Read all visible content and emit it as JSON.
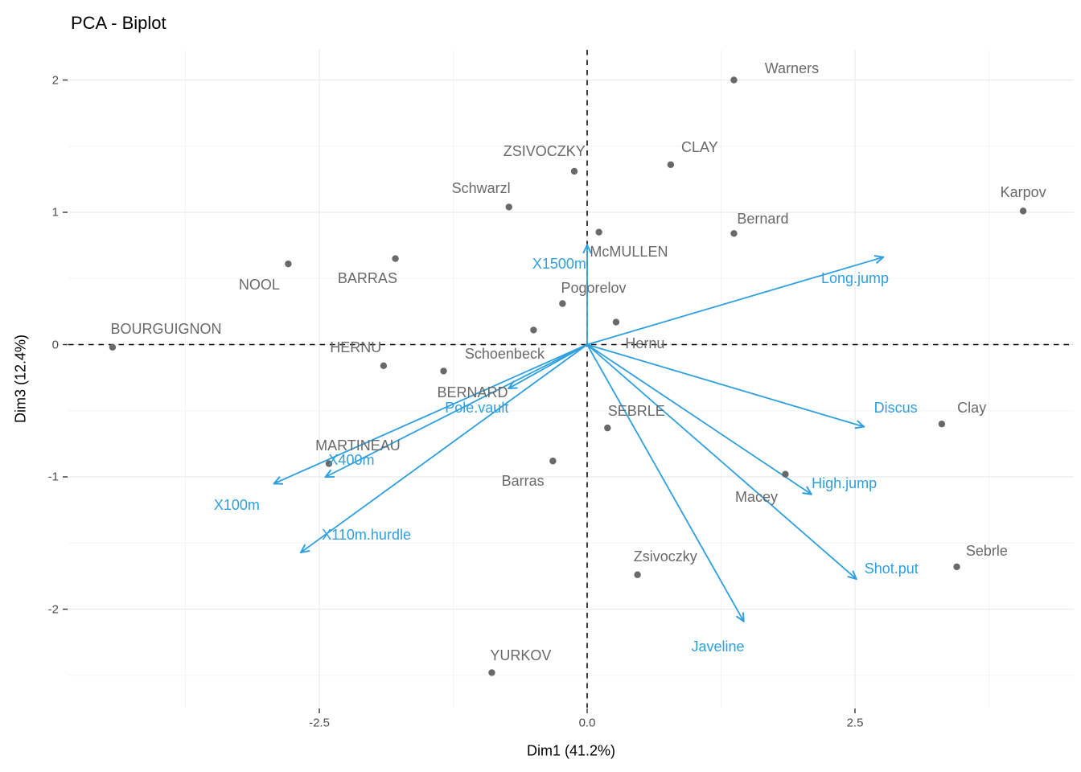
{
  "chart_data": {
    "type": "scatter",
    "subtype": "pca-biplot",
    "title": "PCA - Biplot",
    "xlabel": "Dim1 (41.2%)",
    "ylabel": "Dim3 (12.4%)",
    "xlim": [
      -4.84,
      4.55
    ],
    "ylim": [
      -2.74,
      2.23
    ],
    "grid": true,
    "legend": "none",
    "x_ticks": {
      "values": [
        -2.5,
        0,
        2.5
      ],
      "labels": [
        "-2.5",
        "0.0",
        "2.5"
      ]
    },
    "y_ticks": {
      "values": [
        2,
        1,
        0,
        -1,
        -2
      ],
      "labels": [
        "2",
        "1",
        "0",
        "-1",
        "-2"
      ]
    },
    "x_minor": [
      -3.75,
      -1.25,
      1.25,
      3.75
    ],
    "y_minor": [
      1.5,
      0.5,
      -0.5,
      -1.5,
      -2.5
    ],
    "reference_lines": {
      "vline_x": 0,
      "hline_y": 0,
      "style": "dashed",
      "color": "#000000"
    },
    "colors": {
      "individuals": "#696969",
      "variables": "#2E9FDF",
      "grid_major": "#EBEBEB",
      "grid_minor": "#F4F4F4",
      "tick_text": "#4D4D4D",
      "background": "#FFFFFF"
    },
    "individuals": {
      "color": "#696969",
      "points": [
        {
          "name": "Warners",
          "x": 1.37,
          "y": 2.0,
          "label_x": 1.91,
          "label_y": 2.09
        },
        {
          "name": "ZSIVOCZKY",
          "x": -0.12,
          "y": 1.31,
          "label_x": -0.4,
          "label_y": 1.46
        },
        {
          "name": "CLAY",
          "x": 0.78,
          "y": 1.36,
          "label_x": 1.05,
          "label_y": 1.49
        },
        {
          "name": "Schwarzl",
          "x": -0.73,
          "y": 1.04,
          "label_x": -0.99,
          "label_y": 1.18
        },
        {
          "name": "Karpov",
          "x": 4.07,
          "y": 1.01,
          "label_x": 4.07,
          "label_y": 1.15
        },
        {
          "name": "Bernard",
          "x": 1.37,
          "y": 0.84,
          "label_x": 1.64,
          "label_y": 0.95
        },
        {
          "name": "McMULLEN",
          "x": 0.11,
          "y": 0.85,
          "label_x": 0.39,
          "label_y": 0.7
        },
        {
          "name": "Pogorelov",
          "x": -0.23,
          "y": 0.31,
          "label_x": 0.06,
          "label_y": 0.43
        },
        {
          "name": "Hernu",
          "x": 0.27,
          "y": 0.17,
          "label_x": 0.54,
          "label_y": 0.01
        },
        {
          "name": "Schoenbeck",
          "x": -0.5,
          "y": 0.11,
          "label_x": -0.77,
          "label_y": -0.07
        },
        {
          "name": "NOOL",
          "x": -2.79,
          "y": 0.61,
          "label_x": -3.06,
          "label_y": 0.45
        },
        {
          "name": "BARRAS",
          "x": -1.79,
          "y": 0.65,
          "label_x": -2.05,
          "label_y": 0.5
        },
        {
          "name": "BOURGUIGNON",
          "x": -4.43,
          "y": -0.02,
          "label_x": -3.93,
          "label_y": 0.12
        },
        {
          "name": "HERNU",
          "x": -1.9,
          "y": -0.16,
          "label_x": -2.16,
          "label_y": -0.02
        },
        {
          "name": "BERNARD",
          "x": -1.34,
          "y": -0.2,
          "label_x": -1.07,
          "label_y": -0.36
        },
        {
          "name": "MARTINEAU",
          "x": -2.41,
          "y": -0.9,
          "label_x": -2.14,
          "label_y": -0.76
        },
        {
          "name": "Barras",
          "x": -0.32,
          "y": -0.88,
          "label_x": -0.6,
          "label_y": -1.03
        },
        {
          "name": "SEBRLE",
          "x": 0.19,
          "y": -0.63,
          "label_x": 0.46,
          "label_y": -0.5
        },
        {
          "name": "Macey",
          "x": 1.85,
          "y": -0.98,
          "label_x": 1.58,
          "label_y": -1.15
        },
        {
          "name": "Clay",
          "x": 3.31,
          "y": -0.6,
          "label_x": 3.59,
          "label_y": -0.48
        },
        {
          "name": "Zsivoczky",
          "x": 0.47,
          "y": -1.74,
          "label_x": 0.73,
          "label_y": -1.6
        },
        {
          "name": "Sebrle",
          "x": 3.45,
          "y": -1.68,
          "label_x": 3.73,
          "label_y": -1.56
        },
        {
          "name": "YURKOV",
          "x": -0.89,
          "y": -2.48,
          "label_x": -0.62,
          "label_y": -2.35
        }
      ]
    },
    "variables": {
      "color": "#2E9FDF",
      "origin": [
        0,
        0
      ],
      "arrows": [
        {
          "name": "X1500m",
          "x": 0.0,
          "y": 0.75,
          "label_x": -0.26,
          "label_y": 0.61
        },
        {
          "name": "Long.jump",
          "x": 2.76,
          "y": 0.66,
          "label_x": 2.5,
          "label_y": 0.5
        },
        {
          "name": "Discus",
          "x": 2.58,
          "y": -0.62,
          "label_x": 2.88,
          "label_y": -0.48
        },
        {
          "name": "High.jump",
          "x": 2.09,
          "y": -1.13,
          "label_x": 2.4,
          "label_y": -1.05
        },
        {
          "name": "Shot.put",
          "x": 2.51,
          "y": -1.77,
          "label_x": 2.84,
          "label_y": -1.69
        },
        {
          "name": "Javeline",
          "x": 1.46,
          "y": -2.09,
          "label_x": 1.22,
          "label_y": -2.28
        },
        {
          "name": "Pole.vault",
          "x": -0.73,
          "y": -0.33,
          "label_x": -1.03,
          "label_y": -0.48
        },
        {
          "name": "X400m",
          "x": -2.44,
          "y": -1.0,
          "label_x": -2.2,
          "label_y": -0.87
        },
        {
          "name": "X100m",
          "x": -2.92,
          "y": -1.05,
          "label_x": -3.27,
          "label_y": -1.21
        },
        {
          "name": "X110m.hurdle",
          "x": -2.67,
          "y": -1.57,
          "label_x": -2.06,
          "label_y": -1.44
        }
      ]
    }
  }
}
